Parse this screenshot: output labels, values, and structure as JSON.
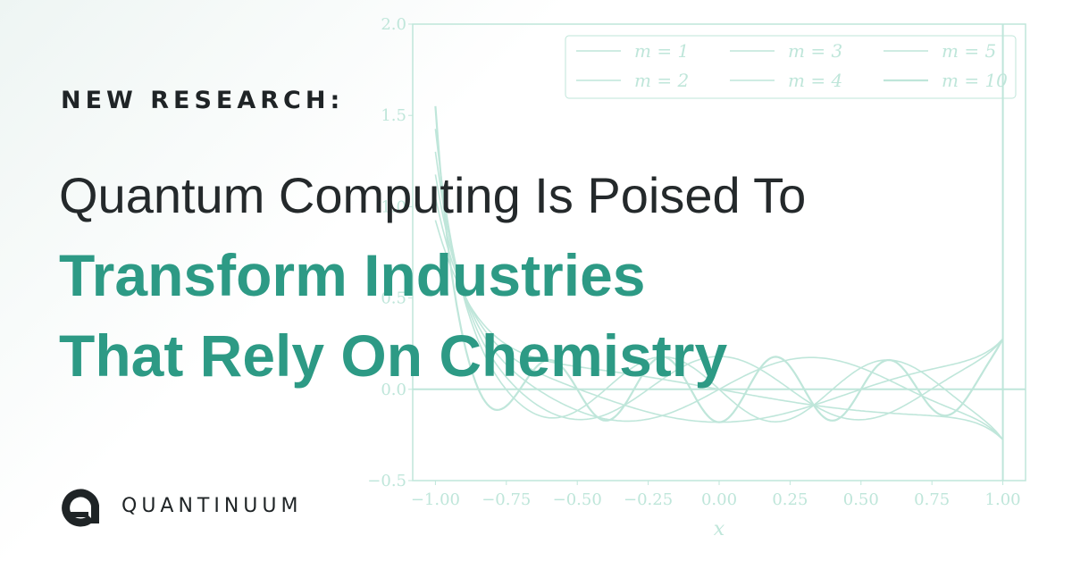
{
  "eyebrow": "NEW RESEARCH:",
  "headline": {
    "line1": "Quantum Computing Is Poised To",
    "line2": "Transform Industries",
    "line3": "That Rely On Chemistry"
  },
  "brand": {
    "name": "QUANTINUUM",
    "logo_icon": "quantinuum-logo-icon"
  },
  "colors": {
    "accent": "#2d9a85",
    "text_dark": "#24292b",
    "chart_line": "#bfe6da"
  },
  "chart_data": {
    "type": "line",
    "title": "",
    "xlabel": "x",
    "ylabel": "",
    "xlim": [
      -1.08,
      1.08
    ],
    "ylim": [
      -0.5,
      2.0
    ],
    "x_ticks": [
      "−1.00",
      "−0.75",
      "−0.50",
      "−0.25",
      "0.00",
      "0.25",
      "0.50",
      "0.75",
      "1.00"
    ],
    "x_tick_values": [
      -1.0,
      -0.75,
      -0.5,
      -0.25,
      0.0,
      0.25,
      0.5,
      0.75,
      1.0
    ],
    "y_ticks": [
      "−0.5",
      "0.0",
      "0.5",
      "1.0",
      "1.5",
      "2.0"
    ],
    "y_tick_values": [
      -0.5,
      0.0,
      0.5,
      1.0,
      1.5,
      2.0
    ],
    "reference_lines": {
      "y": 0.0,
      "x": 1.0
    },
    "legend_position": "top-right",
    "legend_columns": 3,
    "series": [
      {
        "name": "m = 1",
        "m": 1
      },
      {
        "name": "m = 2",
        "m": 2
      },
      {
        "name": "m = 3",
        "m": 3
      },
      {
        "name": "m = 4",
        "m": 4
      },
      {
        "name": "m = 5",
        "m": 5
      },
      {
        "name": "m = 10",
        "m": 10
      }
    ]
  }
}
